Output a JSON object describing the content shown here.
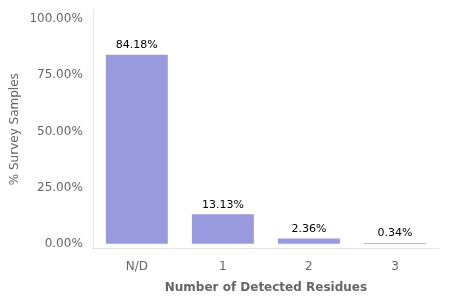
{
  "chart_data": {
    "type": "bar",
    "categories": [
      "N/D",
      "1",
      "2",
      "3"
    ],
    "values": [
      84.18,
      13.13,
      2.36,
      0.34
    ],
    "value_labels": [
      "84.18%",
      "13.13%",
      "2.36%",
      "0.34%"
    ],
    "data_labels": true,
    "color": "#9999DD",
    "xlabel": "Number of Detected Residues",
    "ylabel": "% Survey Samples",
    "ylim": [
      -2,
      104
    ],
    "yticks": [
      {
        "value": 0,
        "label": "0.00%"
      },
      {
        "value": 25,
        "label": "25.00%"
      },
      {
        "value": 50,
        "label": "50.00%"
      },
      {
        "value": 75,
        "label": "75.00%"
      },
      {
        "value": 100,
        "label": "100.00%"
      }
    ],
    "grid": false
  }
}
